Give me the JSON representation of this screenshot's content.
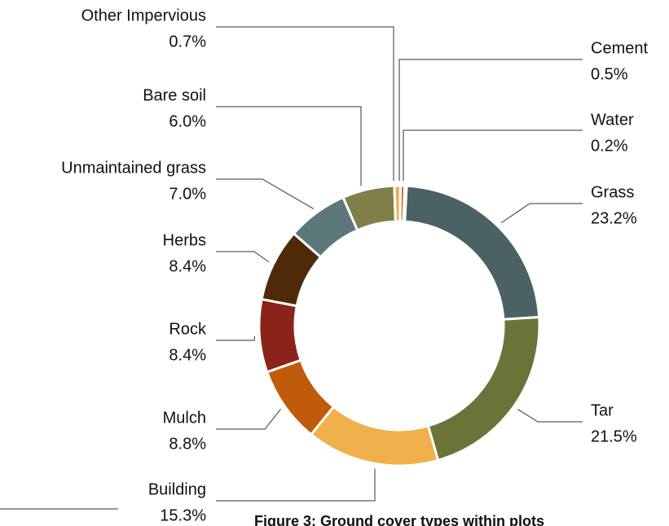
{
  "chart_data": {
    "type": "donut",
    "caption": "Figure 3: Ground cover types within plots",
    "categories": [
      "Grass",
      "Tar",
      "Building",
      "Mulch",
      "Rock",
      "Herbs",
      "Unmaintained grass",
      "Bare soil",
      "Other Impervious",
      "Cement",
      "Water"
    ],
    "values": [
      23.2,
      21.5,
      15.3,
      8.8,
      8.4,
      8.4,
      7.0,
      6.0,
      0.7,
      0.5,
      0.2
    ],
    "value_labels": [
      "23.2%",
      "21.5%",
      "15.3%",
      "8.8%",
      "8.4%",
      "8.4%",
      "7.0%",
      "6.0%",
      "0.7%",
      "0.5%",
      "0.2%"
    ],
    "colors": [
      "#4a6264",
      "#6b7339",
      "#f0b04c",
      "#c05b0b",
      "#8a2319",
      "#4f2a08",
      "#5c787b",
      "#807f4a",
      "#e9b252",
      "#d4741c",
      "#a63b1f"
    ]
  }
}
